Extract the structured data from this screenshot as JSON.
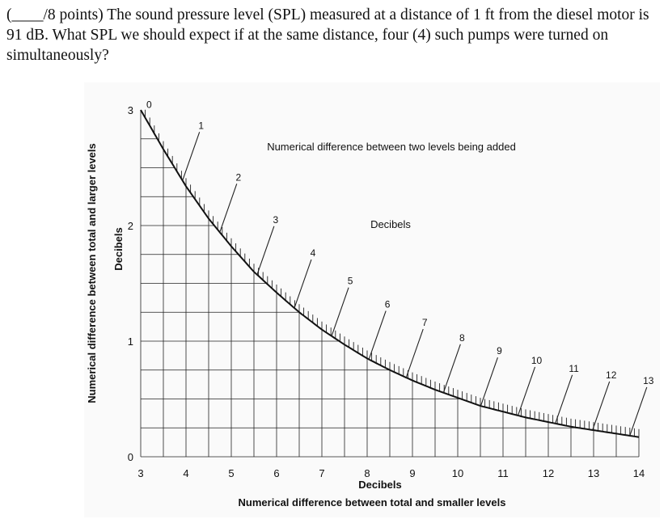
{
  "question": {
    "points_prefix": "(____/8 points)",
    "text": "The sound pressure level (SPL) measured at a distance of 1 ft from the diesel motor is 91 dB. What SPL we should expect if at the same distance, four (4) such pumps were turned on simultaneously?"
  },
  "chart_data": {
    "type": "line",
    "title": "",
    "x_label_primary": "Decibels",
    "x_label_secondary": "Numerical difference between total and smaller levels",
    "x_ticks": [
      "3",
      "4",
      "5",
      "6",
      "7",
      "8",
      "9",
      "10",
      "11",
      "12",
      "13",
      "14"
    ],
    "y_label_primary": "Decibels",
    "y_label_secondary": "Numerical difference between total and larger levels",
    "y_ticks": [
      "0",
      "1",
      "2",
      "3"
    ],
    "xlim": [
      3,
      14
    ],
    "ylim": [
      0,
      3
    ],
    "curve_label": "Numerical difference between two levels being added",
    "curve_unit_label": "Decibels",
    "curve_scale_labels": [
      "0",
      "1",
      "2",
      "3",
      "4",
      "5",
      "6",
      "7",
      "8",
      "9",
      "10",
      "11",
      "12",
      "13"
    ],
    "series": [
      {
        "x": [
          3,
          3.5,
          4,
          4.5,
          5,
          5.5,
          6,
          6.5,
          7,
          7.5,
          8,
          8.5,
          9,
          9.5,
          10,
          10.5,
          11,
          11.5,
          12,
          12.5,
          13,
          13.5,
          14
        ],
        "values": [
          3.0,
          2.66,
          2.34,
          2.06,
          1.82,
          1.6,
          1.42,
          1.25,
          1.1,
          0.97,
          0.85,
          0.75,
          0.66,
          0.58,
          0.51,
          0.44,
          0.39,
          0.34,
          0.3,
          0.26,
          0.23,
          0.2,
          0.17
        ]
      }
    ]
  }
}
